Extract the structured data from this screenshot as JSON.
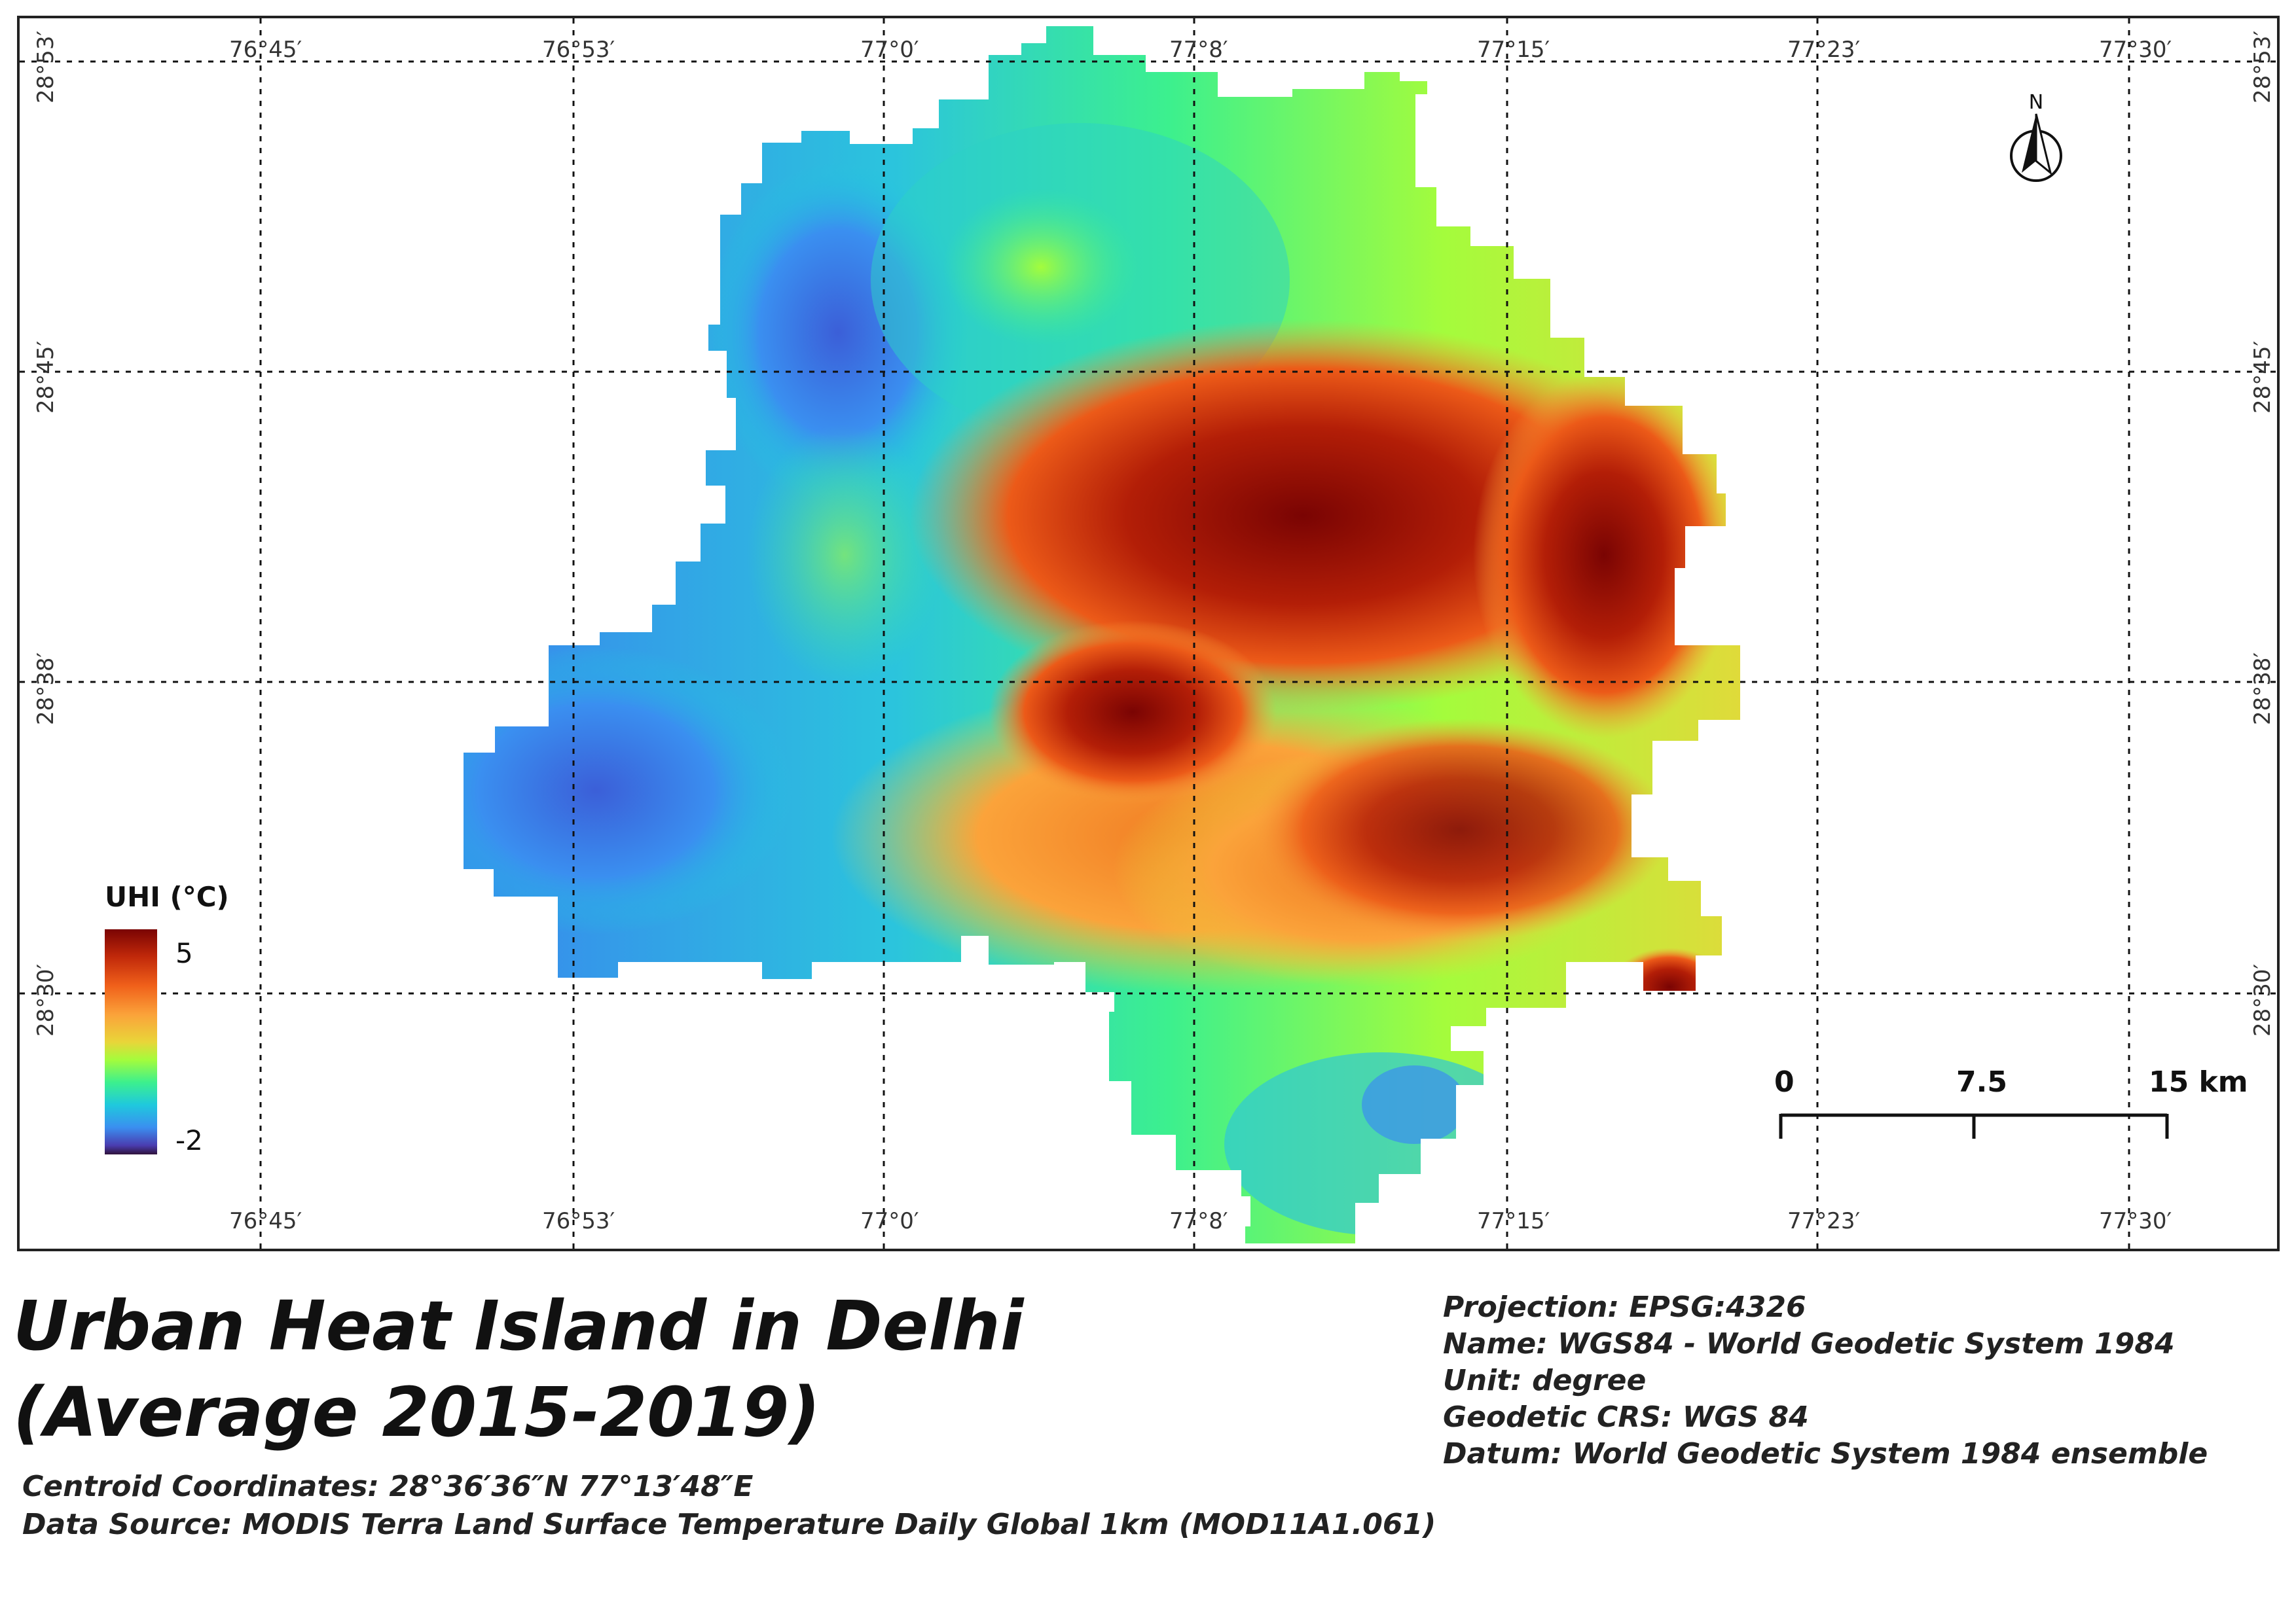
{
  "map": {
    "grid": {
      "longitude_labels": [
        "76°45′",
        "76°53′",
        "77°0′",
        "77°8′",
        "77°15′",
        "77°23′",
        "77°30′"
      ],
      "latitude_labels": [
        "28°53′",
        "28°45′",
        "28°38′",
        "28°30′"
      ]
    },
    "north_arrow": {
      "label": "N"
    },
    "legend": {
      "title": "UHI (°C)",
      "max_label": "5",
      "min_label": "-2",
      "colors": [
        "#7a0403",
        "#f0601a",
        "#e9d539",
        "#a4fc3c",
        "#1fc9dd",
        "#3a8ff0",
        "#30123b"
      ]
    },
    "scale_bar": {
      "labels": [
        "0",
        "7.5",
        "15 km"
      ]
    }
  },
  "title": "Urban Heat Island in Delhi (Average 2015-2019)",
  "centroid": "Centroid Coordinates: 28°36′36″N 77°13′48″E",
  "data_source": "Data Source: MODIS Terra Land Surface Temperature Daily Global 1km (MOD11A1.061)",
  "crs_info": [
    "Projection: EPSG:4326",
    "Name: WGS84 - World Geodetic System 1984",
    "Unit: degree",
    "Geodetic CRS: WGS 84",
    "Datum: World Geodetic System 1984 ensemble"
  ]
}
